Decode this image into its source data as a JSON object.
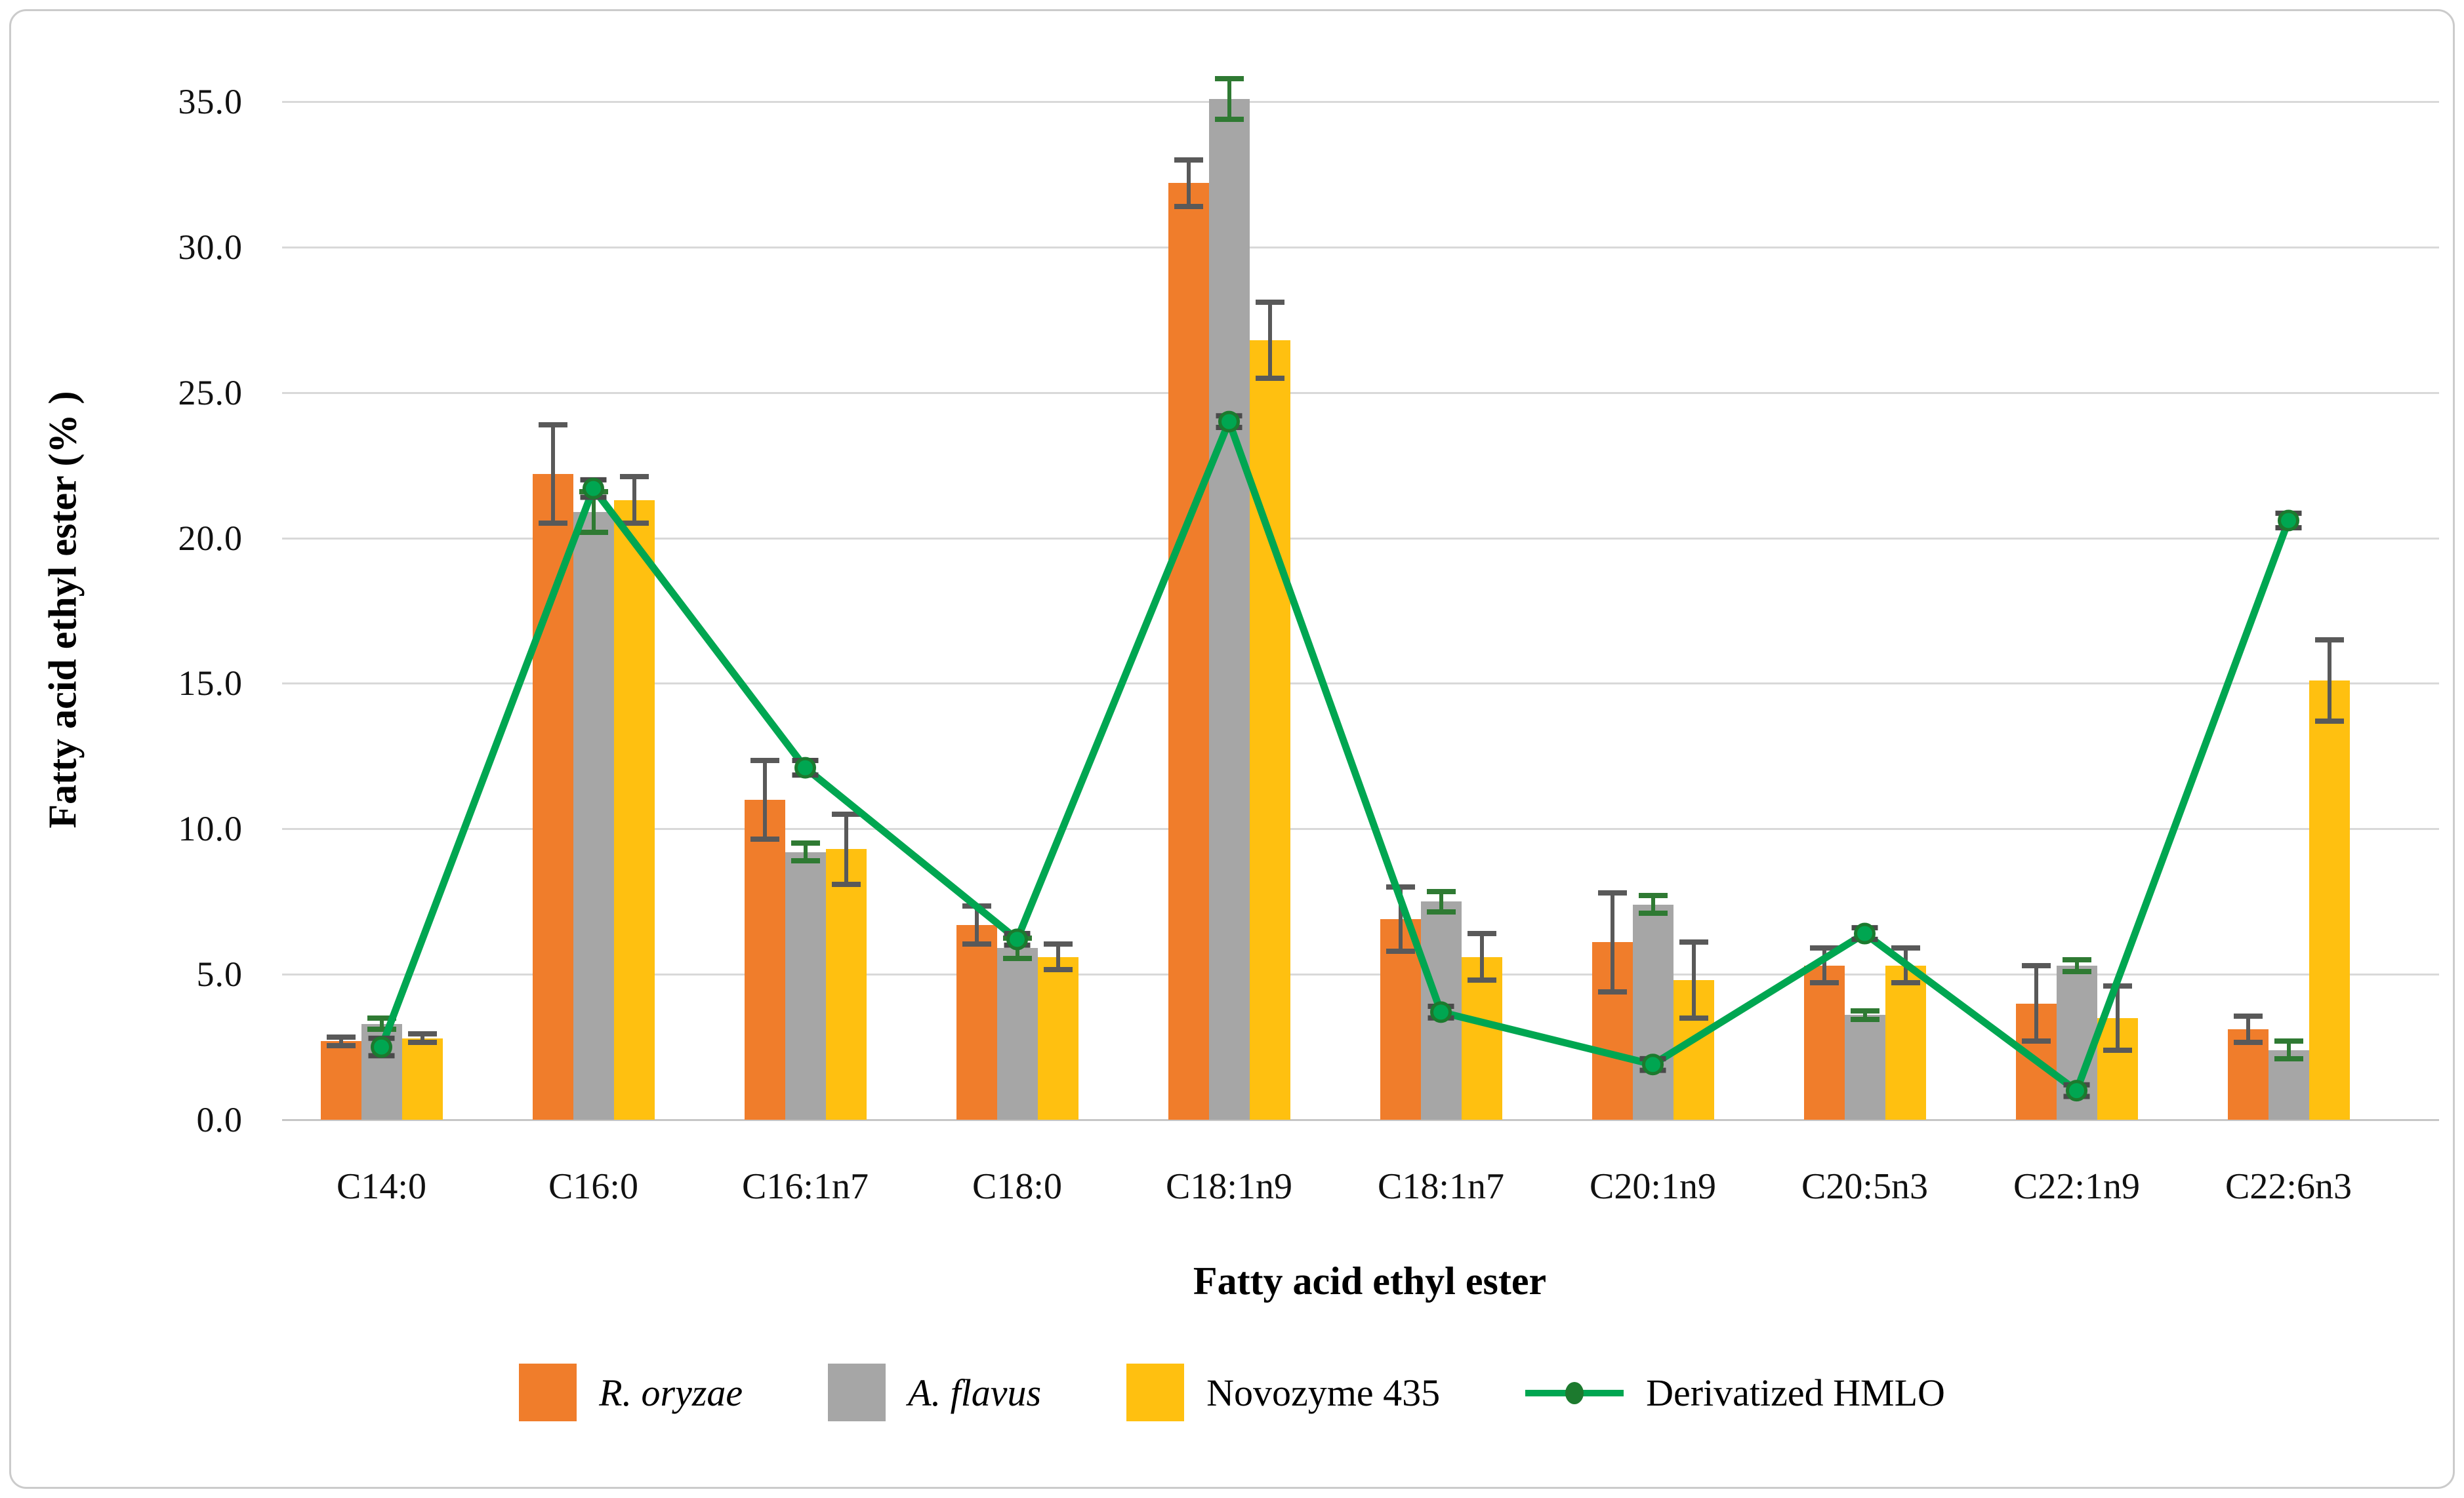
{
  "figure": {
    "background": "#ffffff",
    "border_color": "#cbcbcb"
  },
  "chart_data": {
    "type": "bar",
    "subtype": "grouped bars with error bars and overlaid line series",
    "title": "",
    "xlabel": "Fatty acid ethyl ester",
    "ylabel": "Fatty acid ethyl ester (% )",
    "ylim": [
      0,
      35
    ],
    "ytick_step": 5,
    "ytick_labels": [
      "0.0",
      "5.0",
      "10.0",
      "15.0",
      "20.0",
      "25.0",
      "30.0",
      "35.0"
    ],
    "grid": true,
    "legend_position": "bottom",
    "categories": [
      "C14:0",
      "C16:0",
      "C16:1n7",
      "C18:0",
      "C18:1n9",
      "C18:1n7",
      "C20:1n9",
      "C20:5n3",
      "C22:1n9",
      "C22:6n3"
    ],
    "series": [
      {
        "name": "R. oryzae",
        "type": "bar",
        "color": "#F07D2B",
        "error_color": "#595959",
        "label_style": "italic",
        "values": [
          2.7,
          22.2,
          11.0,
          6.7,
          32.2,
          6.9,
          6.1,
          5.3,
          4.0,
          3.1
        ],
        "errors": [
          0.15,
          1.7,
          1.35,
          0.65,
          0.8,
          1.1,
          1.7,
          0.6,
          1.3,
          0.45
        ]
      },
      {
        "name": "A. flavus",
        "type": "bar",
        "color": "#A6A6A6",
        "error_color": "#2F7A33",
        "label_style": "italic",
        "values": [
          3.3,
          20.9,
          9.2,
          5.9,
          35.1,
          7.5,
          7.4,
          3.6,
          5.3,
          2.4
        ],
        "errors": [
          0.2,
          0.7,
          0.3,
          0.35,
          0.7,
          0.35,
          0.3,
          0.15,
          0.2,
          0.3
        ]
      },
      {
        "name": "Novozyme 435",
        "type": "bar",
        "color": "#FFC010",
        "error_color": "#595959",
        "label_style": "normal",
        "values": [
          2.8,
          21.3,
          9.3,
          5.6,
          26.8,
          5.6,
          4.8,
          5.3,
          3.5,
          15.1
        ],
        "errors": [
          0.15,
          0.8,
          1.2,
          0.45,
          1.3,
          0.8,
          1.3,
          0.6,
          1.1,
          1.4
        ]
      },
      {
        "name": "Derivatized HMLO",
        "type": "line",
        "color": "#00A651",
        "marker_color": "#1C7A2E",
        "error_color": "#4a4a4a",
        "label_style": "normal",
        "values": [
          2.5,
          21.7,
          12.1,
          6.2,
          24.0,
          3.7,
          1.9,
          6.4,
          1.0,
          20.6
        ],
        "errors": [
          0.3,
          0.3,
          0.25,
          0.2,
          0.2,
          0.2,
          0.2,
          0.2,
          0.2,
          0.25
        ]
      }
    ]
  }
}
